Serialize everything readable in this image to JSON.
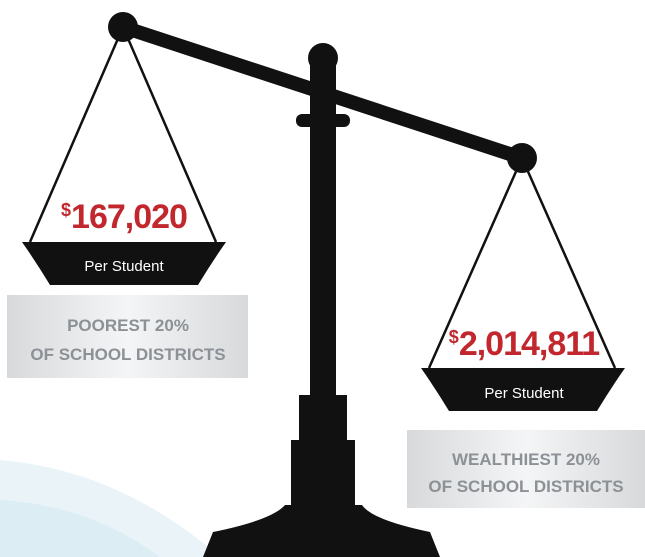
{
  "left_pan": {
    "currency": "$",
    "amount": "167,020",
    "unit": "Per Student",
    "label": [
      "POOREST 20%",
      "OF SCHOOL DISTRICTS"
    ]
  },
  "right_pan": {
    "currency": "$",
    "amount": "2,014,811",
    "unit": "Per Student",
    "label": [
      "WEALTHIEST 20%",
      "OF SCHOOL DISTRICTS"
    ]
  }
}
